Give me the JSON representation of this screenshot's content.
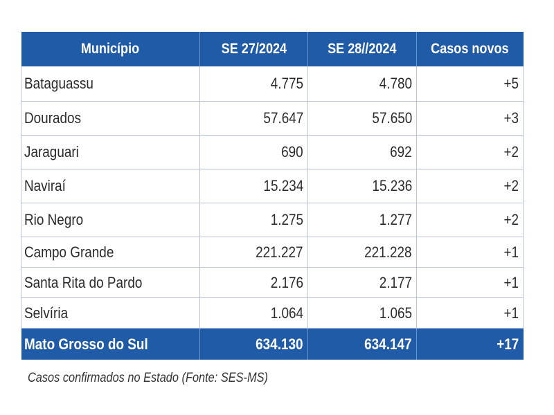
{
  "table": {
    "headers": [
      "Município",
      "SE 27/2024",
      "SE 28//2024",
      "Casos novos"
    ],
    "rows": [
      {
        "municipio": "Bataguassu",
        "se27": "4.775",
        "se28": "4.780",
        "novos": "+5"
      },
      {
        "municipio": "Dourados",
        "se27": "57.647",
        "se28": "57.650",
        "novos": "+3"
      },
      {
        "municipio": "Jaraguari",
        "se27": "690",
        "se28": "692",
        "novos": "+2"
      },
      {
        "municipio": "Naviraí",
        "se27": "15.234",
        "se28": "15.236",
        "novos": "+2"
      },
      {
        "municipio": "Rio Negro",
        "se27": "1.275",
        "se28": "1.277",
        "novos": "+2"
      },
      {
        "municipio": "Campo Grande",
        "se27": "221.227",
        "se28": "221.228",
        "novos": "+1"
      },
      {
        "municipio": "Santa Rita do Pardo",
        "se27": "2.176",
        "se28": "2.177",
        "novos": "+1"
      },
      {
        "municipio": "Selvíria",
        "se27": "1.064",
        "se28": "1.065",
        "novos": "+1"
      }
    ],
    "total": {
      "municipio": "Mato Grosso do Sul",
      "se27": "634.130",
      "se28": "634.147",
      "novos": "+17"
    }
  },
  "caption": "Casos confirmados no Estado (Fonte: SES-MS)",
  "colors": {
    "header_bg": "#1f5ba6",
    "header_text": "#ffffff",
    "grid": "#b8c6d8",
    "body_text": "#2b2b2b"
  }
}
